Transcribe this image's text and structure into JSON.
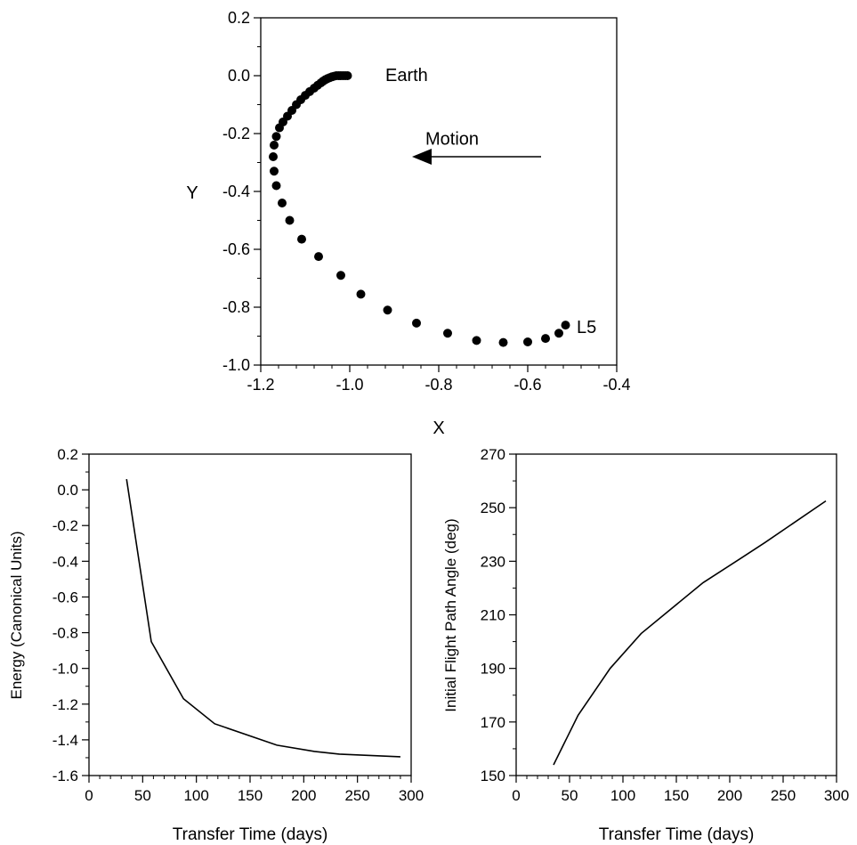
{
  "colors": {
    "ink": "#000000",
    "background": "#ffffff"
  },
  "chart_data": [
    {
      "type": "scatter",
      "xlabel": "X",
      "ylabel": "Y",
      "xlim": [
        -1.2,
        -0.4
      ],
      "ylim": [
        -1.0,
        0.2
      ],
      "xticks": [
        "-1.2",
        "-1.0",
        "-0.8",
        "-0.6",
        "-0.4"
      ],
      "yticks": [
        "-1.0",
        "-0.8",
        "-0.6",
        "-0.4",
        "-0.2",
        "0.0",
        "0.2"
      ],
      "grid": false,
      "annotations": [
        {
          "text": "Earth",
          "x": -0.92,
          "y": 0.0
        },
        {
          "text": "L5",
          "x": -0.49,
          "y": -0.87
        },
        {
          "text": "Motion",
          "x": -0.83,
          "y": -0.22
        }
      ],
      "arrow": {
        "from": [
          -0.57,
          -0.28
        ],
        "to": [
          -0.86,
          -0.28
        ]
      },
      "points": [
        [
          -1.005,
          0.0
        ],
        [
          -1.01,
          0.0
        ],
        [
          -1.015,
          0.0
        ],
        [
          -1.02,
          0.0
        ],
        [
          -1.025,
          0.0
        ],
        [
          -1.03,
          0.0
        ],
        [
          -1.035,
          -0.002
        ],
        [
          -1.04,
          -0.004
        ],
        [
          -1.045,
          -0.007
        ],
        [
          -1.05,
          -0.01
        ],
        [
          -1.055,
          -0.014
        ],
        [
          -1.06,
          -0.019
        ],
        [
          -1.065,
          -0.025
        ],
        [
          -1.072,
          -0.033
        ],
        [
          -1.08,
          -0.043
        ],
        [
          -1.09,
          -0.055
        ],
        [
          -1.1,
          -0.068
        ],
        [
          -1.11,
          -0.083
        ],
        [
          -1.12,
          -0.1
        ],
        [
          -1.13,
          -0.12
        ],
        [
          -1.14,
          -0.14
        ],
        [
          -1.15,
          -0.16
        ],
        [
          -1.158,
          -0.18
        ],
        [
          -1.165,
          -0.21
        ],
        [
          -1.17,
          -0.24
        ],
        [
          -1.172,
          -0.28
        ],
        [
          -1.17,
          -0.33
        ],
        [
          -1.165,
          -0.38
        ],
        [
          -1.152,
          -0.44
        ],
        [
          -1.135,
          -0.5
        ],
        [
          -1.108,
          -0.565
        ],
        [
          -1.07,
          -0.625
        ],
        [
          -1.02,
          -0.69
        ],
        [
          -0.975,
          -0.755
        ],
        [
          -0.915,
          -0.81
        ],
        [
          -0.85,
          -0.855
        ],
        [
          -0.78,
          -0.89
        ],
        [
          -0.715,
          -0.915
        ],
        [
          -0.655,
          -0.922
        ],
        [
          -0.6,
          -0.92
        ],
        [
          -0.56,
          -0.908
        ],
        [
          -0.53,
          -0.89
        ],
        [
          -0.515,
          -0.862
        ]
      ]
    },
    {
      "type": "line",
      "xlabel": "Transfer Time (days)",
      "ylabel": "Energy (Canonical Units)",
      "xlim": [
        0,
        300
      ],
      "ylim": [
        -1.6,
        0.2
      ],
      "xticks": [
        "0",
        "50",
        "100",
        "150",
        "200",
        "250",
        "300"
      ],
      "yticks": [
        "-1.6",
        "-1.4",
        "-1.2",
        "-1.0",
        "-0.8",
        "-0.6",
        "-0.4",
        "-0.2",
        "0.0",
        "0.2"
      ],
      "grid": false,
      "x": [
        35,
        58,
        88,
        117,
        175,
        210,
        233,
        290
      ],
      "y": [
        0.06,
        -0.85,
        -1.17,
        -1.31,
        -1.43,
        -1.465,
        -1.48,
        -1.495
      ]
    },
    {
      "type": "line",
      "xlabel": "Transfer Time (days)",
      "ylabel": "Initial Flight Path Angle (deg)",
      "xlim": [
        0,
        300
      ],
      "ylim": [
        150,
        270
      ],
      "xticks": [
        "0",
        "50",
        "100",
        "150",
        "200",
        "250",
        "300"
      ],
      "yticks": [
        "150",
        "170",
        "190",
        "210",
        "230",
        "250",
        "270"
      ],
      "grid": false,
      "x": [
        35,
        58,
        88,
        117,
        175,
        210,
        233,
        290
      ],
      "y": [
        154,
        172.5,
        190,
        203,
        222,
        231,
        237,
        252.5
      ]
    }
  ]
}
